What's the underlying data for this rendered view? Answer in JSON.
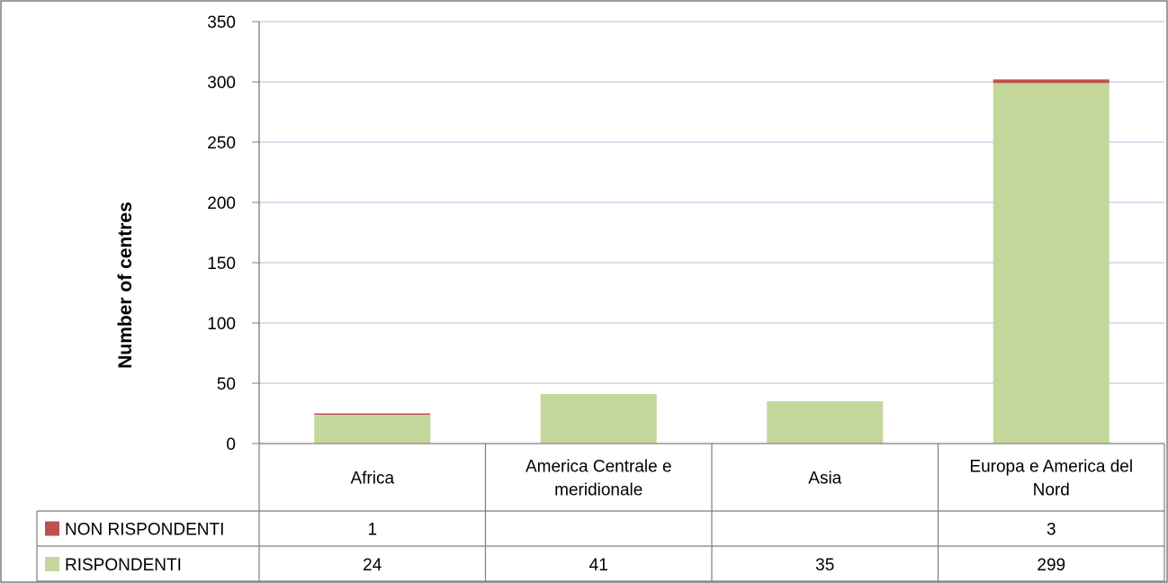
{
  "chart_data": {
    "type": "bar",
    "stacked": true,
    "ylabel": "Number of centres",
    "xlabel": "",
    "title": "",
    "ylim": [
      0,
      350
    ],
    "yticks": [
      0,
      50,
      100,
      150,
      200,
      250,
      300,
      350
    ],
    "grid": true,
    "legend": "data-table",
    "categories": [
      [
        "Africa"
      ],
      [
        "America Centrale e",
        "meridionale"
      ],
      [
        "Asia"
      ],
      [
        "Europa e America del",
        "Nord"
      ]
    ],
    "series": [
      {
        "name": "RISPONDENTI",
        "color": "#c4d79b",
        "values": [
          24,
          41,
          35,
          299
        ]
      },
      {
        "name": "NON RISPONDENTI",
        "color": "#c0504d",
        "values": [
          1,
          null,
          null,
          3
        ]
      }
    ],
    "table_rows": [
      {
        "name": "NON RISPONDENTI",
        "color": "#c0504d",
        "cells": [
          "1",
          "",
          "",
          "3"
        ]
      },
      {
        "name": "RISPONDENTI",
        "color": "#c4d79b",
        "cells": [
          "24",
          "41",
          "35",
          "299"
        ]
      }
    ]
  }
}
